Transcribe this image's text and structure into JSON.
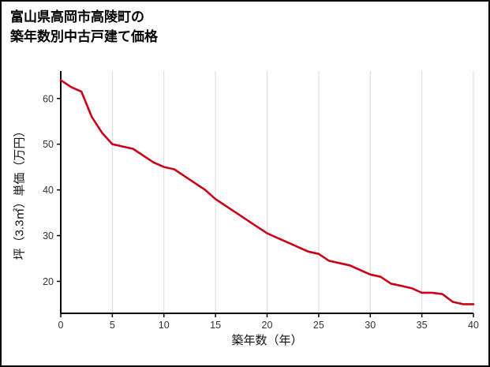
{
  "chart_data": {
    "type": "line",
    "title_lines": [
      "富山県高岡市高陵町の",
      "築年数別中古戸建て価格"
    ],
    "xlabel": "築年数（年）",
    "ylabel": "坪（3.3㎡）単価（万円）",
    "x": [
      0,
      1,
      2,
      3,
      4,
      5,
      6,
      7,
      8,
      9,
      10,
      11,
      12,
      13,
      14,
      15,
      16,
      17,
      18,
      19,
      20,
      21,
      22,
      23,
      24,
      25,
      26,
      27,
      28,
      29,
      30,
      31,
      32,
      33,
      34,
      35,
      36,
      37,
      38,
      39,
      40
    ],
    "values": [
      64,
      62.5,
      61.5,
      56,
      52.5,
      50,
      49.5,
      49,
      47.5,
      46,
      45,
      44.5,
      43,
      41.5,
      40,
      38,
      36.5,
      35,
      33.5,
      32,
      30.5,
      29.5,
      28.5,
      27.5,
      26.5,
      26,
      24.5,
      24,
      23.5,
      22.5,
      21.5,
      21,
      19.5,
      19,
      18.5,
      17.5,
      17.5,
      17.2,
      15.5,
      15,
      15
    ],
    "xticks": [
      0,
      5,
      10,
      15,
      20,
      25,
      30,
      35,
      40
    ],
    "yticks": [
      20,
      30,
      40,
      50,
      60
    ],
    "xlim": [
      0,
      40
    ],
    "ylim": [
      13,
      66
    ],
    "grid": "vertical-only",
    "legend": "none",
    "line_color": "#c90016",
    "axis_color": "#000000",
    "grid_color": "#d9d9d9",
    "tick_label_color": "#333333"
  }
}
